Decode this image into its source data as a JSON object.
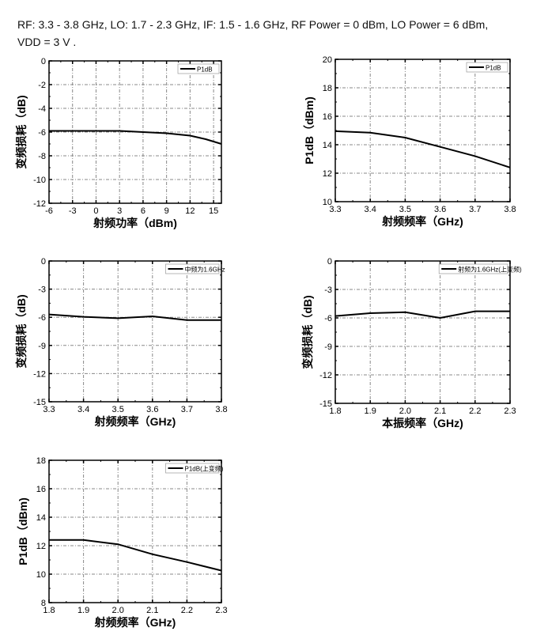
{
  "header": {
    "line1": "RF:  3.3 - 3.8 GHz, LO: 1.7 - 2.3 GHz, IF: 1.5 - 1.6 GHz, RF Power = 0 dBm, LO Power = 6 dBm,",
    "line2": "VDD = 3 V ."
  },
  "chart_data": [
    {
      "type": "line",
      "xlabel": "射频功率（dBm)",
      "ylabel": "变频损耗（dB)",
      "xlim": [
        -6,
        16
      ],
      "ylim": [
        -12,
        0
      ],
      "xticks": [
        -6,
        -3,
        0,
        3,
        6,
        9,
        12,
        15
      ],
      "yticks": [
        -12,
        -10,
        -8,
        -6,
        -4,
        -2,
        0
      ],
      "legend": "P1dB",
      "legend_pos": "top-right",
      "grid": true,
      "x": [
        -6,
        -3,
        0,
        3,
        6,
        9,
        12,
        14,
        16
      ],
      "y": [
        -5.9,
        -5.9,
        -5.9,
        -5.9,
        -6.0,
        -6.1,
        -6.3,
        -6.6,
        -7.0
      ]
    },
    {
      "type": "line",
      "xlabel": "射频频率（GHz)",
      "ylabel": "P1dB（dBm)",
      "xlim": [
        3.3,
        3.8
      ],
      "ylim": [
        10,
        20
      ],
      "xticks": [
        3.3,
        3.4,
        3.5,
        3.6,
        3.7,
        3.8
      ],
      "yticks": [
        10,
        12,
        14,
        16,
        18,
        20
      ],
      "legend": "P1dB",
      "legend_pos": "top-right",
      "grid": true,
      "x": [
        3.3,
        3.4,
        3.5,
        3.6,
        3.7,
        3.8
      ],
      "y": [
        14.95,
        14.85,
        14.5,
        13.85,
        13.2,
        12.4
      ]
    },
    {
      "type": "line",
      "xlabel": "射频频率（GHz)",
      "ylabel": "变频损耗（dB)",
      "xlim": [
        3.3,
        3.8
      ],
      "ylim": [
        -15,
        0
      ],
      "xticks": [
        3.3,
        3.4,
        3.5,
        3.6,
        3.7,
        3.8
      ],
      "yticks": [
        -15,
        -12,
        -9,
        -6,
        -3,
        0
      ],
      "legend": "中频为1.6GHz",
      "legend_pos": "top-right",
      "grid": true,
      "x": [
        3.3,
        3.4,
        3.5,
        3.6,
        3.7,
        3.8
      ],
      "y": [
        -5.7,
        -5.95,
        -6.1,
        -5.9,
        -6.3,
        -6.3
      ]
    },
    {
      "type": "line",
      "xlabel": "本振频率（GHz)",
      "ylabel": "变频损耗（dB)",
      "xlim": [
        1.8,
        2.3
      ],
      "ylim": [
        -15,
        0
      ],
      "xticks": [
        1.8,
        1.9,
        2.0,
        2.1,
        2.2,
        2.3
      ],
      "yticks": [
        -15,
        -12,
        -9,
        -6,
        -3,
        0
      ],
      "legend": "射频为1.6GHz(上变频)",
      "legend_pos": "top-right",
      "grid": true,
      "x": [
        1.8,
        1.9,
        2.0,
        2.1,
        2.2,
        2.3
      ],
      "y": [
        -5.8,
        -5.5,
        -5.4,
        -6.0,
        -5.3,
        -5.3
      ]
    },
    {
      "type": "line",
      "xlabel": "射频频率（GHz)",
      "ylabel": "P1dB（dBm)",
      "xlim": [
        1.8,
        2.3
      ],
      "ylim": [
        8,
        18
      ],
      "xticks": [
        1.8,
        1.9,
        2.0,
        2.1,
        2.2,
        2.3
      ],
      "yticks": [
        8,
        10,
        12,
        14,
        16,
        18
      ],
      "legend": "P1dB(上变频)",
      "legend_pos": "top-right",
      "grid": true,
      "x": [
        1.8,
        1.9,
        2.0,
        2.1,
        2.2,
        2.3
      ],
      "y": [
        12.4,
        12.4,
        12.1,
        11.4,
        10.85,
        10.25
      ]
    }
  ]
}
